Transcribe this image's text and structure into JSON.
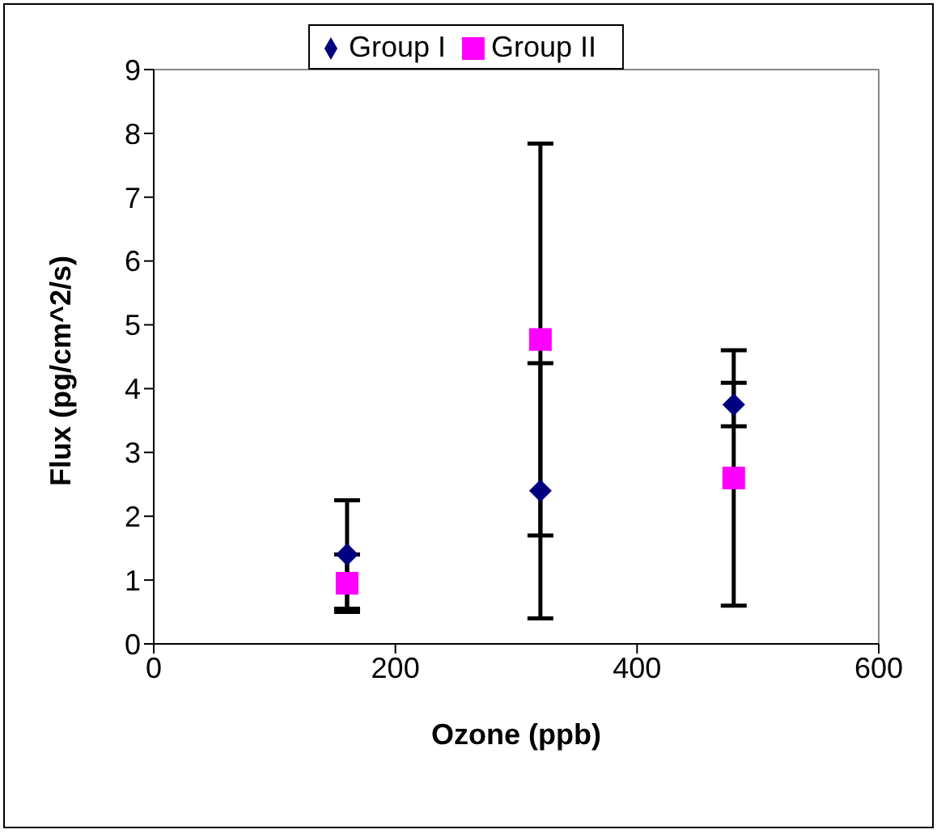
{
  "chart_data": {
    "type": "scatter",
    "xlabel": "Ozone (ppb)",
    "ylabel": "Flux (pg/cm^2/s)",
    "xlim": [
      0,
      600
    ],
    "xticks": [
      0,
      200,
      400,
      600
    ],
    "ylim": [
      0,
      9
    ],
    "yticks": [
      0,
      1,
      2,
      3,
      4,
      5,
      6,
      7,
      8,
      9
    ],
    "grid": false,
    "legend": "top",
    "series": [
      {
        "name": "Group I",
        "color": "#000080",
        "marker": "diamond",
        "x": [
          160,
          320,
          480
        ],
        "values": [
          1.4,
          2.4,
          3.75
        ],
        "errors": [
          0.85,
          2.0,
          0.34
        ]
      },
      {
        "name": "Group II",
        "color": "#ff00ff",
        "marker": "square",
        "x": [
          160,
          320,
          480
        ],
        "values": [
          0.95,
          4.77,
          2.6
        ],
        "errors": [
          0.45,
          3.07,
          2.0
        ]
      }
    ]
  }
}
